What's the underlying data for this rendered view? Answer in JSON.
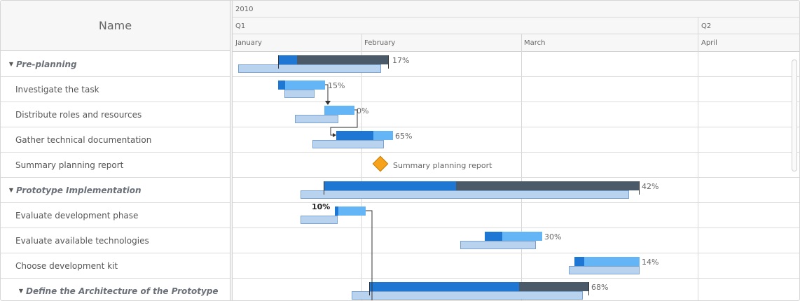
{
  "grid": {
    "header": "Name"
  },
  "rows": [
    {
      "label": "Pre-planning",
      "group": true
    },
    {
      "label": "Investigate the task",
      "group": false
    },
    {
      "label": "Distribute roles and resources",
      "group": false
    },
    {
      "label": "Gather technical documentation",
      "group": false
    },
    {
      "label": "Summary planning report",
      "group": false
    },
    {
      "label": "Prototype Implementation",
      "group": true
    },
    {
      "label": "Evaluate development phase",
      "group": false
    },
    {
      "label": "Evaluate available technologies",
      "group": false
    },
    {
      "label": "Choose development kit",
      "group": false
    },
    {
      "label": "Define the Architecture of the Prototype",
      "group": true
    }
  ],
  "timeline": {
    "year": "2010",
    "quarters": [
      "Q1",
      "Q2"
    ],
    "months": [
      "January",
      "February",
      "March",
      "April"
    ]
  },
  "tasks": [
    {
      "name": "Pre-planning",
      "progress_label": "17%",
      "progress": 0.17
    },
    {
      "name": "Investigate the task",
      "progress_label": "15%",
      "progress": 0.15
    },
    {
      "name": "Distribute roles and resources",
      "progress_label": "0%",
      "progress": 0
    },
    {
      "name": "Gather technical documentation",
      "progress_label": "65%",
      "progress": 0.65
    },
    {
      "name": "Summary planning report",
      "milestone_label": "Summary planning report"
    },
    {
      "name": "Prototype Implementation",
      "progress_label": "42%",
      "progress": 0.42
    },
    {
      "name": "Evaluate development phase",
      "progress_label": "10%",
      "progress": 0.1
    },
    {
      "name": "Evaluate available technologies",
      "progress_label": "30%",
      "progress": 0.3
    },
    {
      "name": "Choose development kit",
      "progress_label": "14%",
      "progress": 0.14
    },
    {
      "name": "Define the Architecture of the Prototype",
      "progress_label": "68%",
      "progress": 0.68
    }
  ],
  "colors": {
    "group_bar": "#4a5a68",
    "task_bar": "#64b5f6",
    "progress": "#1e77d3",
    "baseline": "#b9d2ee",
    "milestone": "#f7a21b"
  }
}
